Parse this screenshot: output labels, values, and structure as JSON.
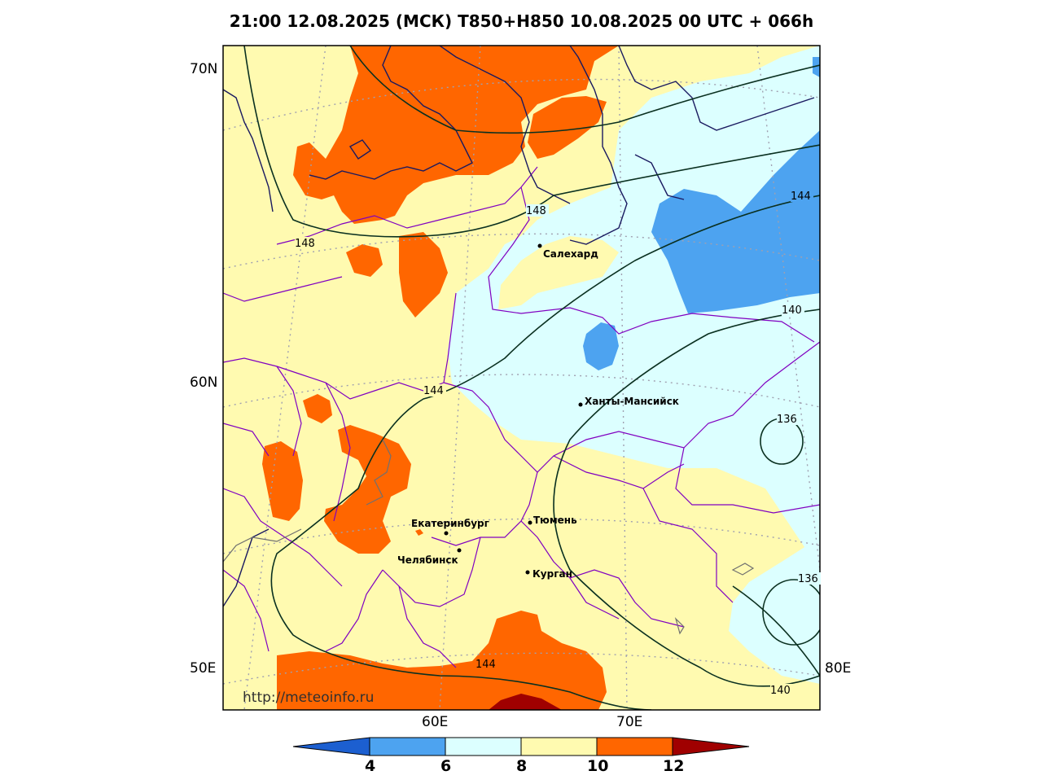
{
  "title": "21:00 12.08.2025 (МСК) T850+H850 10.08.2025 00 UTC + 066h",
  "watermark": "http://meteoinfo.ru",
  "lat_labels": [
    "70N",
    "60N",
    "50E"
  ],
  "lon_labels": [
    "60E",
    "70E",
    "80E"
  ],
  "cities": [
    {
      "name": "Салехард"
    },
    {
      "name": "Ханты-Мансийск"
    },
    {
      "name": "Екатеринбург"
    },
    {
      "name": "Тюмень"
    },
    {
      "name": "Челябинск"
    },
    {
      "name": "Курган"
    }
  ],
  "contour_labels": [
    "148",
    "148",
    "144",
    "144",
    "144",
    "140",
    "140",
    "136",
    "136"
  ],
  "colorbar": {
    "ticks": [
      "4",
      "6",
      "8",
      "10",
      "12"
    ],
    "colors": [
      "#1c5fd0",
      "#4da3f0",
      "#dcffff",
      "#fffab0",
      "#ff6600",
      "#a00000"
    ]
  },
  "colors": {
    "warm": "#fffab0",
    "orange": "#ff6600",
    "darkred": "#a00000",
    "cyan": "#dcffff",
    "blue": "#4da3f0",
    "borders": "#8000c0",
    "coast": "#1a1a60",
    "contour": "#0a3020"
  }
}
